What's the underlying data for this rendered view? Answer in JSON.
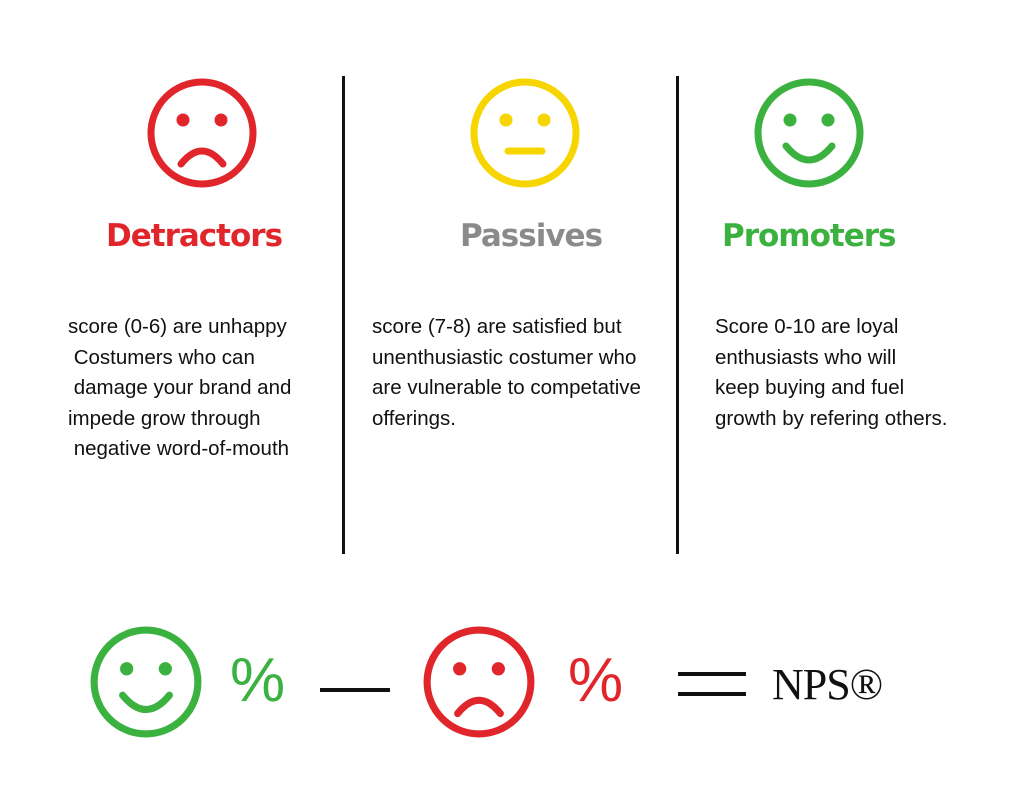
{
  "colors": {
    "detractor": "#e0252b",
    "passive_face": "#f6d500",
    "passive_title": "#8a8a8a",
    "promoter": "#3bb13f"
  },
  "categories": [
    {
      "id": "detractors",
      "icon": "sad-face-icon",
      "title": "Detractors",
      "description": "score (0-6) are unhappy\n Costumers who can\n damage your brand and\nimpede grow through\n negative word-of-mouth"
    },
    {
      "id": "passives",
      "icon": "neutral-face-icon",
      "title": "Passives",
      "description": "score (7-8) are satisfied but\nunenthusiastic costumer who\nare vulnerable to competative\nofferings."
    },
    {
      "id": "promoters",
      "icon": "happy-face-icon",
      "title": "Promoters",
      "description": "Score 0-10 are loyal\nenthusiasts who will\nkeep buying and fuel\ngrowth by refering others."
    }
  ],
  "formula": {
    "promoter_percent": "%",
    "detractor_percent": "%",
    "result": "NPS®"
  }
}
